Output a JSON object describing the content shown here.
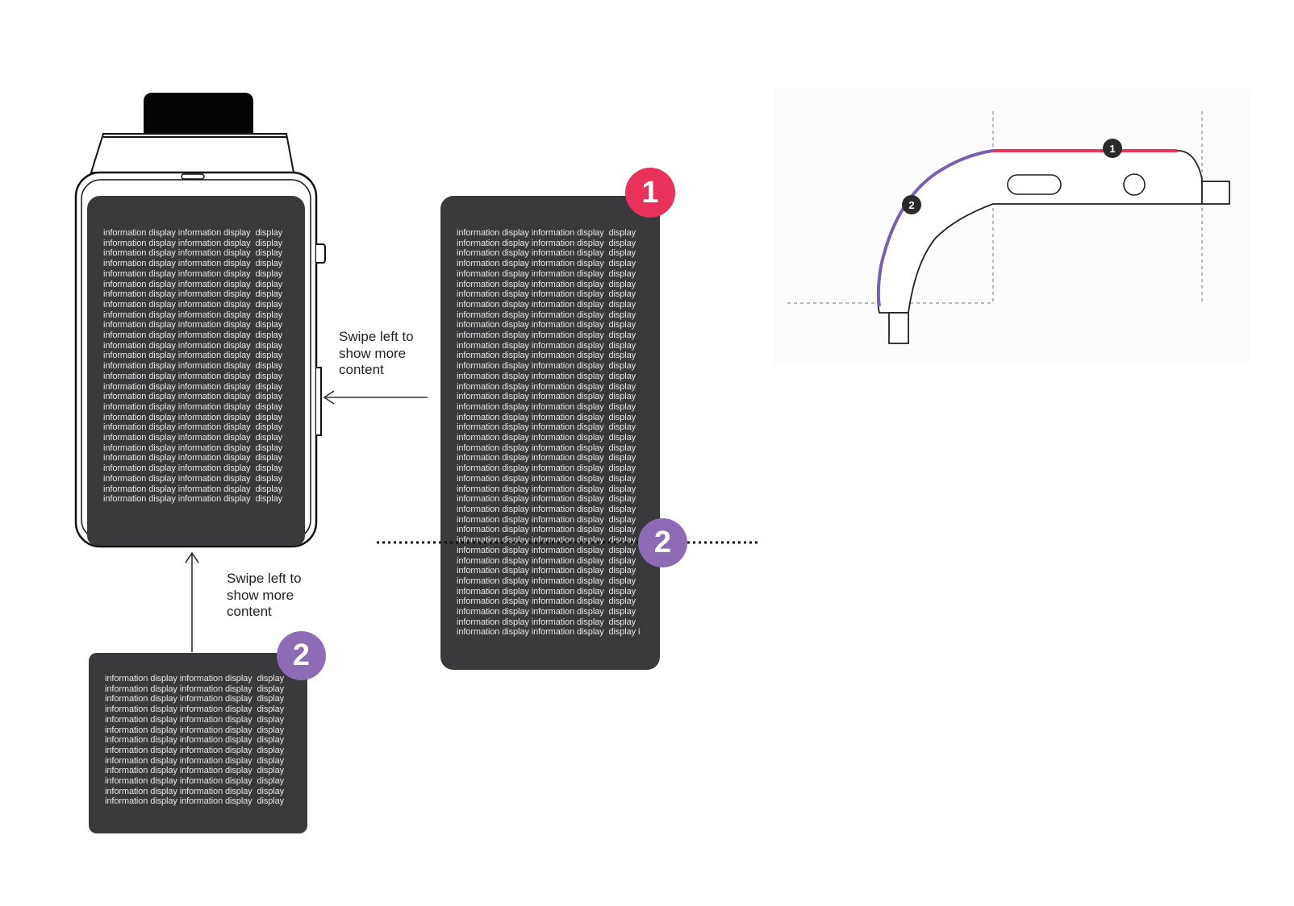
{
  "screen_line": "information display information display  display",
  "long_panel_last_line": "information display information display  display i",
  "swipe_caption_right": [
    "Swipe left to",
    "show more",
    "content"
  ],
  "swipe_caption_bottom": [
    "Swipe left to",
    "show more",
    "content"
  ],
  "badges": {
    "primary": {
      "label": "1",
      "color": "#e8315b"
    },
    "secondary": {
      "label": "2",
      "color": "#8e6bb6"
    }
  },
  "side_diagram": {
    "marker_primary": "1",
    "marker_secondary": "2",
    "primary_segment_color": "#e8315b",
    "secondary_segment_color": "#7a5fb5"
  },
  "line_counts": {
    "watch_screen": 27,
    "long_panel": 40,
    "small_panel": 13
  }
}
